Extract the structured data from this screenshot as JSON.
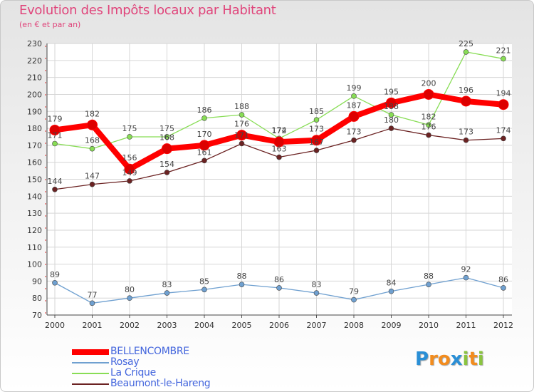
{
  "title": "Evolution des Impôts locaux par Habitant",
  "subtitle": "(en € et par an)",
  "chart_data": {
    "type": "line",
    "x": [
      "2000",
      "2001",
      "2002",
      "2003",
      "2004",
      "2005",
      "2006",
      "2007",
      "2008",
      "2009",
      "2010",
      "2011",
      "2012"
    ],
    "ylim": [
      70,
      230
    ],
    "yticks": [
      70,
      80,
      90,
      100,
      110,
      120,
      130,
      140,
      150,
      160,
      170,
      180,
      190,
      200,
      210,
      220,
      230
    ],
    "grid": true,
    "legend_position": "bottom-left",
    "series": [
      {
        "name": "BELLENCOMBRE",
        "color": "#ff0000",
        "width": 8,
        "radius": 7,
        "values": [
          179,
          182,
          156,
          168,
          170,
          176,
          172,
          173,
          187,
          195,
          200,
          196,
          194
        ]
      },
      {
        "name": "Rosay",
        "color": "#6fa0d0",
        "width": 1.3,
        "radius": 3.5,
        "values": [
          89,
          77,
          80,
          83,
          85,
          88,
          86,
          83,
          79,
          84,
          88,
          92,
          86
        ]
      },
      {
        "name": "La Crique",
        "color": "#88dd55",
        "width": 1.3,
        "radius": 3.5,
        "values": [
          171,
          168,
          175,
          175,
          186,
          188,
          174,
          185,
          199,
          188,
          182,
          225,
          221
        ]
      },
      {
        "name": "Beaumont-le-Hareng",
        "color": "#6b2222",
        "width": 1.3,
        "radius": 3.5,
        "values": [
          144,
          147,
          149,
          154,
          161,
          171,
          163,
          167,
          173,
          180,
          176,
          173,
          174
        ]
      }
    ]
  },
  "logo": {
    "letters": [
      {
        "char": "P",
        "color": "#2a8fd6"
      },
      {
        "char": "r",
        "color": "#f28c1e"
      },
      {
        "char": "o",
        "color": "#f28c1e"
      },
      {
        "char": "x",
        "color": "#2a8fd6"
      },
      {
        "char": "i",
        "color": "#8ac43f"
      },
      {
        "char": "t",
        "color": "#f28c1e"
      },
      {
        "char": "i",
        "color": "#8ac43f"
      }
    ]
  }
}
